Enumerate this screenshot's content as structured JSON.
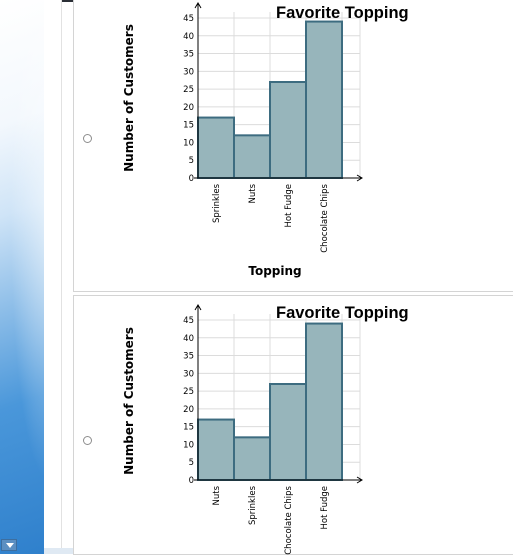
{
  "options": [
    {
      "chart_data": {
        "type": "bar",
        "title": "Favorite Topping",
        "xlabel": "Topping",
        "ylabel": "Number of Customers",
        "categories": [
          "Sprinkles",
          "Nuts",
          "Hot Fudge",
          "Chocolate Chips"
        ],
        "values": [
          17,
          12,
          27,
          44
        ],
        "ylim": [
          0,
          45
        ],
        "yticks": [
          0,
          5,
          10,
          15,
          20,
          25,
          30,
          35,
          40,
          45
        ],
        "grid": true
      }
    },
    {
      "chart_data": {
        "type": "bar",
        "title": "Favorite Topping",
        "xlabel": "",
        "ylabel": "Number of Customers",
        "categories": [
          "Nuts",
          "Sprinkles",
          "Chocolate Chips",
          "Hot Fudge"
        ],
        "values": [
          17,
          12,
          27,
          44
        ],
        "ylim": [
          0,
          45
        ],
        "yticks": [
          0,
          5,
          10,
          15,
          20,
          25,
          30,
          35,
          40,
          45
        ],
        "grid": true
      }
    }
  ],
  "colors": {
    "bar_fill": "#97b5bb",
    "bar_stroke": "#3d6c80",
    "left_panel_accent": "#2f80cc"
  }
}
